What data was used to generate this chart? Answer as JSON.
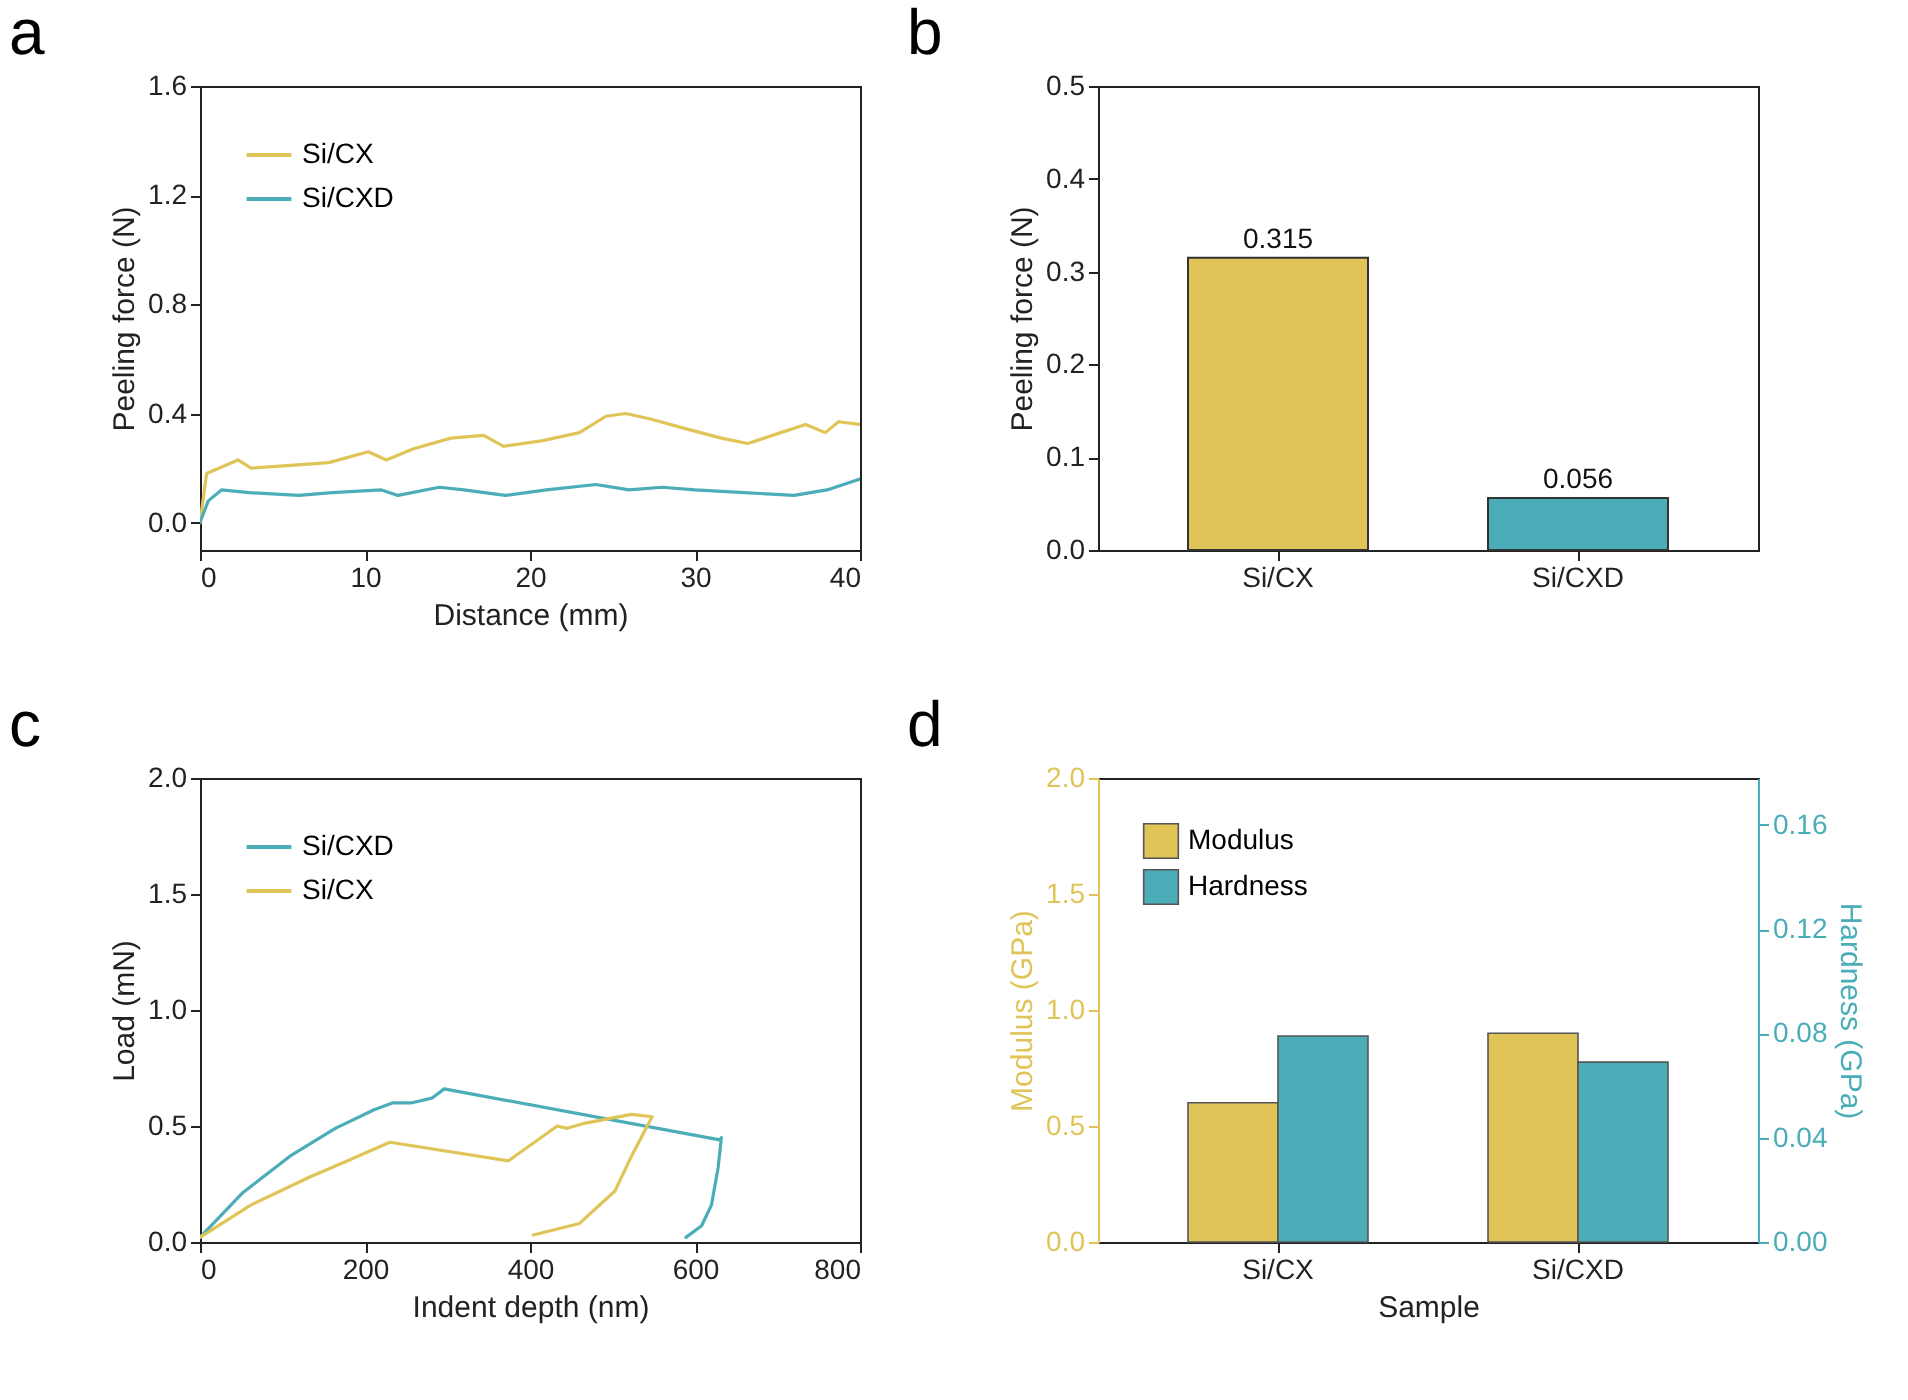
{
  "chart_data": [
    {
      "type": "line",
      "title": "a",
      "xlabel": "Distance (mm)",
      "ylabel": "Peeling force (N)",
      "xlim": [
        0,
        40
      ],
      "xticks": [
        0,
        10,
        20,
        30,
        40
      ],
      "ylim": [
        -0.1,
        1.6
      ],
      "yticks": [
        {
          "value": 0,
          "label": "0.0"
        },
        0.4,
        0.8,
        1.2,
        1.6
      ],
      "legend": "top left",
      "series": [
        {
          "name": "Si/CX",
          "color": "#e0c458",
          "x": [
            0,
            0.4,
            2.3,
            3.1,
            5.5,
            7.8,
            10.2,
            11.3,
            12.9,
            15.2,
            17.2,
            18.4,
            20.7,
            23,
            24.6,
            25.8,
            27.3,
            29.7,
            31.6,
            33.2,
            35.2,
            36.7,
            37.9,
            38.7,
            40
          ],
          "values": [
            0.0,
            0.18,
            0.23,
            0.2,
            0.21,
            0.22,
            0.26,
            0.23,
            0.27,
            0.31,
            0.32,
            0.28,
            0.3,
            0.33,
            0.39,
            0.4,
            0.38,
            0.34,
            0.31,
            0.29,
            0.33,
            0.36,
            0.33,
            0.37,
            0.36
          ]
        },
        {
          "name": "Si/CXD",
          "color": "#4badb7",
          "x": [
            0,
            0.5,
            1.3,
            3,
            6,
            8,
            11,
            12,
            14.5,
            16,
            18.5,
            21,
            24,
            26,
            28,
            30,
            33,
            36,
            38,
            40
          ],
          "values": [
            0.0,
            0.08,
            0.12,
            0.11,
            0.1,
            0.11,
            0.12,
            0.1,
            0.13,
            0.12,
            0.1,
            0.12,
            0.14,
            0.12,
            0.13,
            0.12,
            0.11,
            0.1,
            0.12,
            0.16
          ]
        }
      ]
    },
    {
      "type": "bar",
      "title": "b",
      "ylabel": "Peeling force (N)",
      "categories": [
        "Si/CX",
        "Si/CXD"
      ],
      "values": [
        0.315,
        0.056
      ],
      "colors": [
        "#e0c458",
        "#4badb7"
      ],
      "ylim": [
        0,
        0.5
      ],
      "yticks": [
        {
          "value": 0,
          "label": "0.0"
        },
        0.1,
        0.2,
        0.3,
        0.4,
        0.5
      ],
      "data_labels": true
    },
    {
      "type": "line",
      "title": "c",
      "xlabel": "Indent depth (nm)",
      "ylabel": "Load (mN)",
      "xlim": [
        0,
        800
      ],
      "xticks": [
        0,
        200,
        400,
        600,
        800
      ],
      "ylim": [
        0,
        2.0
      ],
      "yticks": [
        {
          "value": 0,
          "label": "0.0"
        },
        0.5,
        {
          "value": 1,
          "label": "1.0"
        },
        1.5,
        {
          "value": 2,
          "label": "2.0"
        }
      ],
      "legend": "top left",
      "series": [
        {
          "name": "Si/CXD",
          "color": "#4badb7",
          "x": [
            0,
            51,
            109,
            164,
            211,
            234,
            257,
            281,
            296,
            630,
            632,
            628,
            620,
            608,
            589
          ],
          "values": [
            0.02,
            0.21,
            0.37,
            0.49,
            0.57,
            0.6,
            0.6,
            0.62,
            0.66,
            0.44,
            0.45,
            0.32,
            0.16,
            0.07,
            0.02
          ]
        },
        {
          "name": "Si/CX",
          "color": "#e0c458",
          "x": [
            0,
            62,
            133,
            179,
            230,
            374,
            433,
            445,
            464,
            523,
            548,
            523,
            503,
            460,
            404
          ],
          "values": [
            0.02,
            0.16,
            0.28,
            0.35,
            0.43,
            0.35,
            0.5,
            0.49,
            0.51,
            0.55,
            0.54,
            0.37,
            0.22,
            0.08,
            0.03
          ]
        }
      ]
    },
    {
      "type": "bar",
      "title": "d",
      "xlabel": "Sample",
      "ylabel": "Modulus (GPa)",
      "y2label": "Hardness (GPa)",
      "categories": [
        "Si/CX",
        "Si/CXD"
      ],
      "ylim": [
        0,
        2.0
      ],
      "yticks": [
        {
          "value": 0,
          "label": "0.0"
        },
        0.5,
        {
          "value": 1,
          "label": "1.0"
        },
        1.5,
        {
          "value": 2,
          "label": "2.0"
        }
      ],
      "y2lim": [
        0,
        0.178
      ],
      "y2ticks": [
        {
          "value": 0,
          "label": "0.00"
        },
        0.04,
        0.08,
        0.12,
        0.16
      ],
      "legend": "top left",
      "series": [
        {
          "name": "Modulus",
          "color": "#e0c458",
          "values": [
            0.6,
            0.9
          ]
        },
        {
          "name": "Hardness",
          "color": "#4badb7",
          "axis": "y2",
          "values": [
            0.079,
            0.069
          ]
        }
      ]
    }
  ]
}
